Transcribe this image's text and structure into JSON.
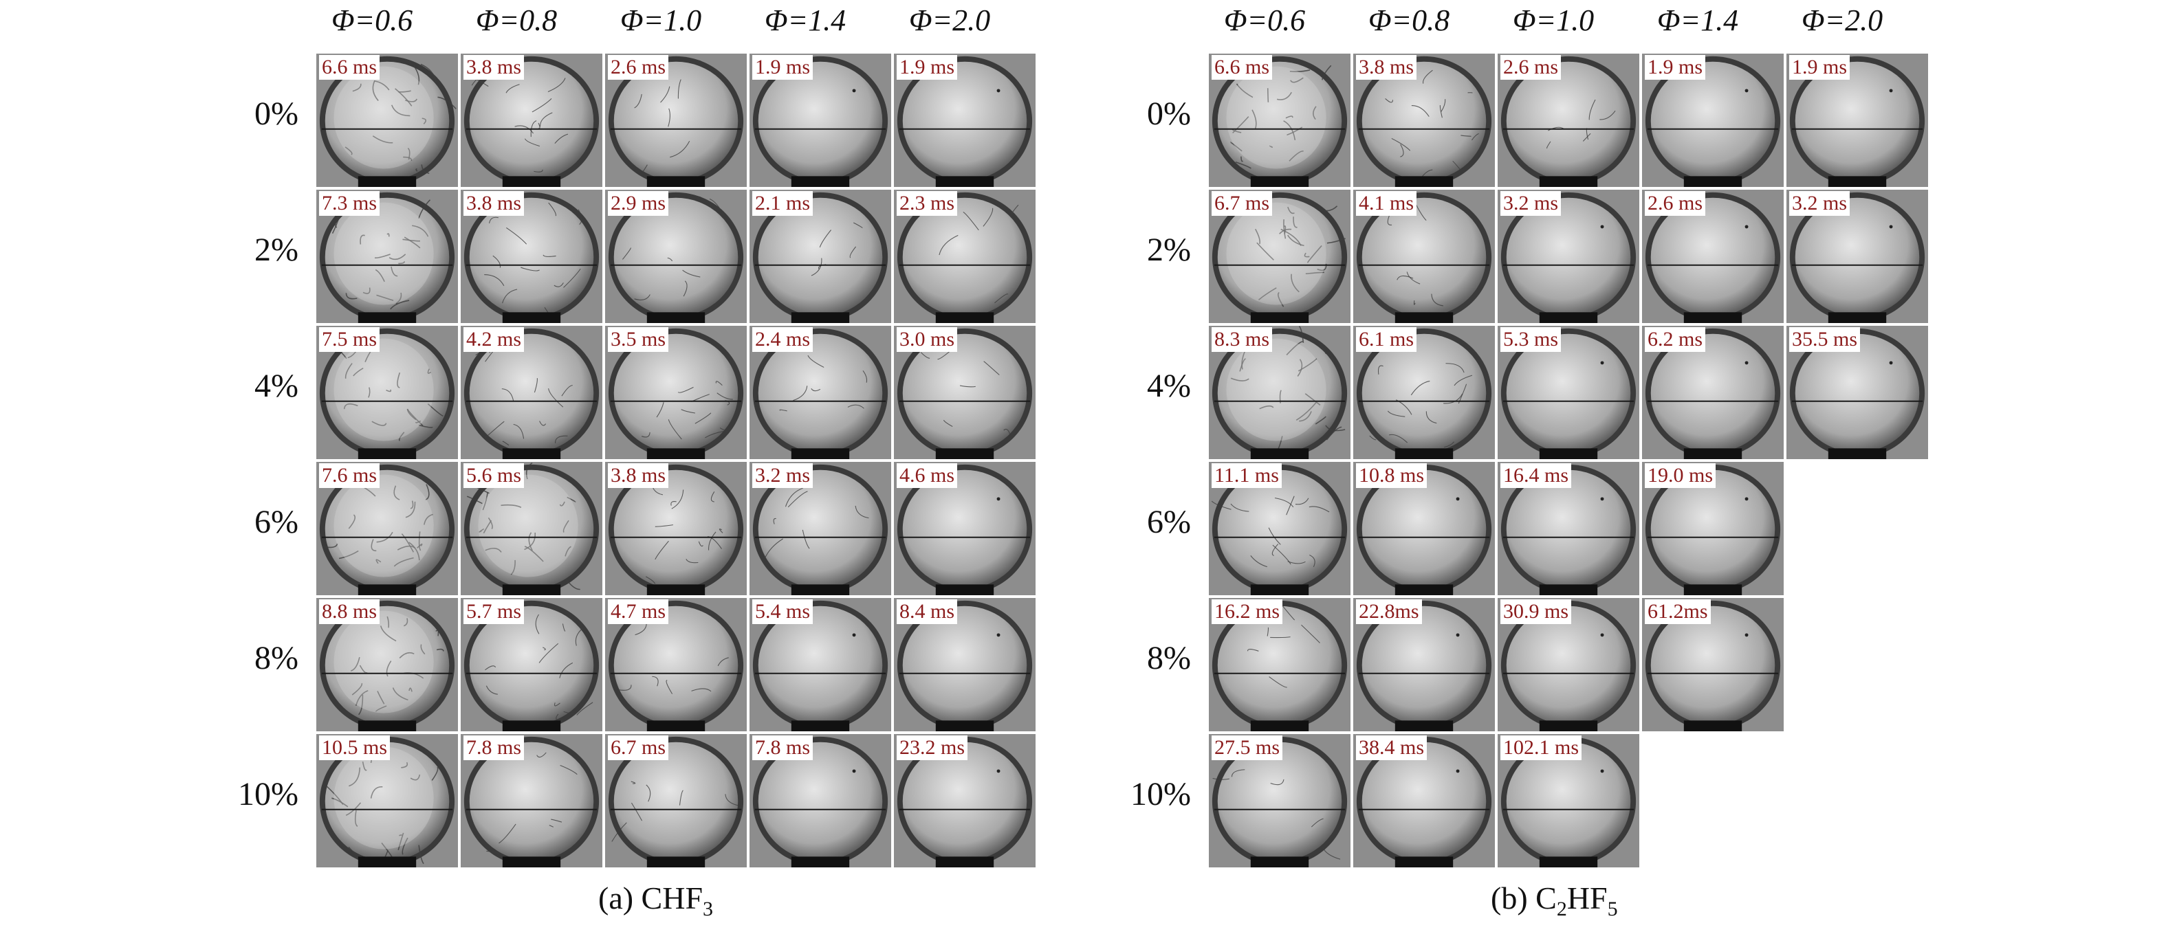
{
  "panels": [
    {
      "id": "a",
      "headers": [
        "Φ=0.6",
        "Φ=0.8",
        "Φ=1.0",
        "Φ=1.4",
        "Φ=2.0"
      ],
      "rows": [
        {
          "label": "0%",
          "times": [
            "6.6 ms",
            "3.8 ms",
            "2.6 ms",
            "1.9 ms",
            "1.9 ms"
          ],
          "cracks": [
            3,
            2,
            1,
            0,
            0
          ]
        },
        {
          "label": "2%",
          "times": [
            "7.3 ms",
            "3.8 ms",
            "2.9 ms",
            "2.1 ms",
            "2.3 ms"
          ],
          "cracks": [
            3,
            2,
            1,
            1,
            1
          ]
        },
        {
          "label": "4%",
          "times": [
            "7.5 ms",
            "4.2 ms",
            "3.5 ms",
            "2.4 ms",
            "3.0 ms"
          ],
          "cracks": [
            3,
            2,
            2,
            1,
            1
          ]
        },
        {
          "label": "6%",
          "times": [
            "7.6 ms",
            "5.6 ms",
            "3.8 ms",
            "3.2 ms",
            "4.6 ms"
          ],
          "cracks": [
            3,
            3,
            2,
            1,
            0
          ]
        },
        {
          "label": "8%",
          "times": [
            "8.8 ms",
            "5.7 ms",
            "4.7 ms",
            "5.4 ms",
            "8.4 ms"
          ],
          "cracks": [
            3,
            2,
            1,
            0,
            0
          ]
        },
        {
          "label": "10%",
          "times": [
            "10.5 ms",
            "7.8 ms",
            "6.7 ms",
            "7.8 ms",
            "23.2 ms"
          ],
          "cracks": [
            3,
            1,
            1,
            0,
            0
          ]
        }
      ],
      "caption_prefix": "(a) CHF",
      "caption_sub": "3",
      "caption_suffix": ""
    },
    {
      "id": "b",
      "headers": [
        "Φ=0.6",
        "Φ=0.8",
        "Φ=1.0",
        "Φ=1.4",
        "Φ=2.0"
      ],
      "rows": [
        {
          "label": "0%",
          "times": [
            "6.6 ms",
            "3.8 ms",
            "2.6 ms",
            "1.9 ms",
            "1.9 ms"
          ],
          "cracks": [
            3,
            2,
            1,
            0,
            0
          ]
        },
        {
          "label": "2%",
          "times": [
            "6.7 ms",
            "4.1 ms",
            "3.2 ms",
            "2.6 ms",
            "3.2 ms"
          ],
          "cracks": [
            3,
            1,
            0,
            0,
            0
          ]
        },
        {
          "label": "4%",
          "times": [
            "8.3 ms",
            "6.1 ms",
            "5.3 ms",
            "6.2 ms",
            "35.5 ms"
          ],
          "cracks": [
            3,
            2,
            0,
            0,
            0
          ]
        },
        {
          "label": "6%",
          "times": [
            "11.1 ms",
            "10.8 ms",
            "16.4 ms",
            "19.0 ms"
          ],
          "cracks": [
            2,
            0,
            0,
            0
          ]
        },
        {
          "label": "8%",
          "times": [
            "16.2 ms",
            "22.8ms",
            "30.9 ms",
            "61.2ms"
          ],
          "cracks": [
            1,
            0,
            0,
            0
          ]
        },
        {
          "label": "10%",
          "times": [
            "27.5 ms",
            "38.4 ms",
            "102.1 ms"
          ],
          "cracks": [
            1,
            0,
            0
          ]
        }
      ],
      "caption_prefix": "(b) C",
      "caption_sub": "2",
      "caption_suffix": "HF",
      "caption_sub2": "5"
    }
  ]
}
